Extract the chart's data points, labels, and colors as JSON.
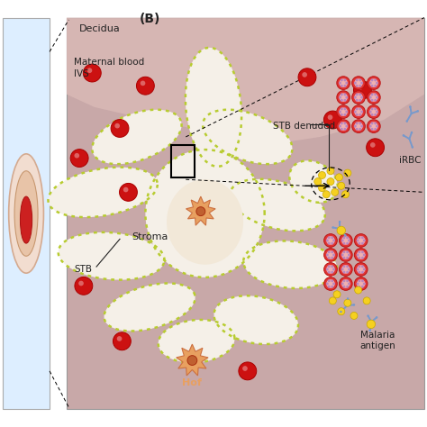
{
  "title": "(B)",
  "ivs_color": "#c8a8a8",
  "decidua_color": "#d8b8b5",
  "stb_fill": "#f5f0e8",
  "stb_outline": "#b8cc30",
  "stroma_center": "#ede0d0",
  "rbc_color": "#cc1111",
  "rbc_edge": "#aa0000",
  "yellow_color": "#f5d020",
  "yellow_edge": "#c8a800",
  "irbc_red": "#dd3333",
  "irbc_inner": "#f0a0a0",
  "irbc_spot": "#b090c0",
  "antibody_color": "#7799cc",
  "hof_body": "#e8a060",
  "hof_nucleus": "#c06030",
  "hof_edge": "#cc7040",
  "left_bg": "#ddeeff",
  "text_dark": "#222222",
  "label_decidua": "Decidua",
  "label_ivs": "Maternal blood\nIVS",
  "label_stroma": "Stroma",
  "label_stb": "STB",
  "label_hof": "Hof",
  "label_stb_denuded": "STB denuded",
  "label_irbc": "iRBC",
  "label_malaria": "Malaria\nantigen"
}
